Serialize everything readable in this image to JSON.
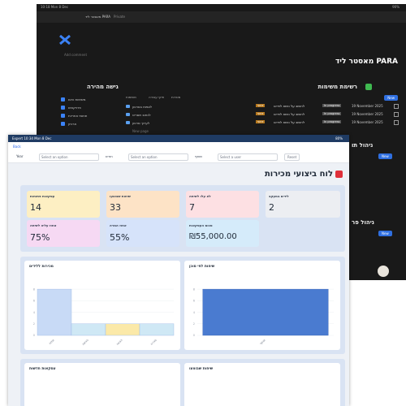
{
  "background_window": {
    "status_time": "10:18 Mon 8 Dec",
    "battery": "90%",
    "tab_title": "מאסטר ליד PARA",
    "privacy": "Private",
    "add_comment": "Add comment",
    "page_title": "מאסטר ליד PARA",
    "quick_access": {
      "title": "גישה מהירה",
      "items": [
        "משימות היום",
        "פרויקטים",
        "תחומי אחריות",
        "ארכיון"
      ]
    },
    "projects": {
      "toolbar": [
        "משימות",
        "תיקי עבודה",
        "מטרות"
      ],
      "items": [
        "לצפות בסרטון",
        "לכתוב תסריט",
        "לערוך סרטון"
      ],
      "new_page": "New page"
    },
    "tasks": {
      "title": "רשימת משימות",
      "new_button": "New",
      "rows": [
        {
          "tag": "דחוף",
          "name": "לחשוב על נושא לוידאו",
          "status": "In progress",
          "date": "19 November 2025"
        },
        {
          "tag": "דחוף",
          "name": "לחשוב על נושא לוידאו",
          "status": "In progress",
          "date": "19 November 2025"
        },
        {
          "tag": "דחוף",
          "name": "לחשוב על נושא לוידאו",
          "status": "In progress",
          "date": "19 November 2025"
        }
      ]
    },
    "side_sections": [
      {
        "title": "ניהול תו",
        "button": "New"
      },
      {
        "title": "ניהול פר",
        "button": "New"
      }
    ]
  },
  "dashboard": {
    "status_left": "Expert 10:34 Mon 8 Dec",
    "battery": "80%",
    "back": "Back",
    "filters": [
      {
        "label": "Year",
        "placeholder": "Select an option"
      },
      {
        "label": "חודש",
        "placeholder": "Select an option"
      },
      {
        "label": "שותף",
        "placeholder": "Select a user"
      }
    ],
    "reset": "Reset",
    "title": "לוח ביצועי מכירות",
    "kpis": [
      {
        "label": "עסקאות פתוחות",
        "value": "14",
        "color": "#fdefc3"
      },
      {
        "label": "שיחות שבוצעו",
        "value": "33",
        "color": "#fde3c6"
      },
      {
        "label": "לא עלו לשיחה",
        "value": "7",
        "color": "#fde0e3"
      },
      {
        "label": "לידים במעקב",
        "value": "2",
        "color": "#eceef2"
      },
      {
        "label": "אחוז עליה לשיחה",
        "value": "75%",
        "color": "#f6d9f3"
      },
      {
        "label": "אחוז המרה",
        "value": "55%",
        "color": "#d6e3fa"
      },
      {
        "label": "סכום העסקאות",
        "value": "₪55,000.00",
        "color": "#d5ebfa"
      }
    ],
    "charts": [
      {
        "type": "bar",
        "title": "מכירות ללידים",
        "categories": [
          "שיחה",
          "פגישה",
          "הצעה",
          "סגירה"
        ],
        "values": [
          8,
          2,
          2,
          2
        ],
        "colors": [
          "#c8daf6",
          "#cfe8f5",
          "#fbe9a8",
          "#cfe8f5"
        ],
        "ylim": [
          0,
          9
        ],
        "yticks": [
          0,
          2,
          4,
          6,
          8
        ],
        "grid": true
      },
      {
        "type": "bar",
        "title": "שיחות לפי סוכן",
        "categories": [
          "שותף"
        ],
        "values": [
          8
        ],
        "colors": [
          "#4a7bd0"
        ],
        "ylim": [
          0,
          9
        ],
        "yticks": [
          0,
          2,
          4,
          6,
          8
        ],
        "grid": true
      }
    ],
    "bottom_cards": [
      "עסקאות חדשות",
      "שיחות שבוצעו"
    ]
  }
}
